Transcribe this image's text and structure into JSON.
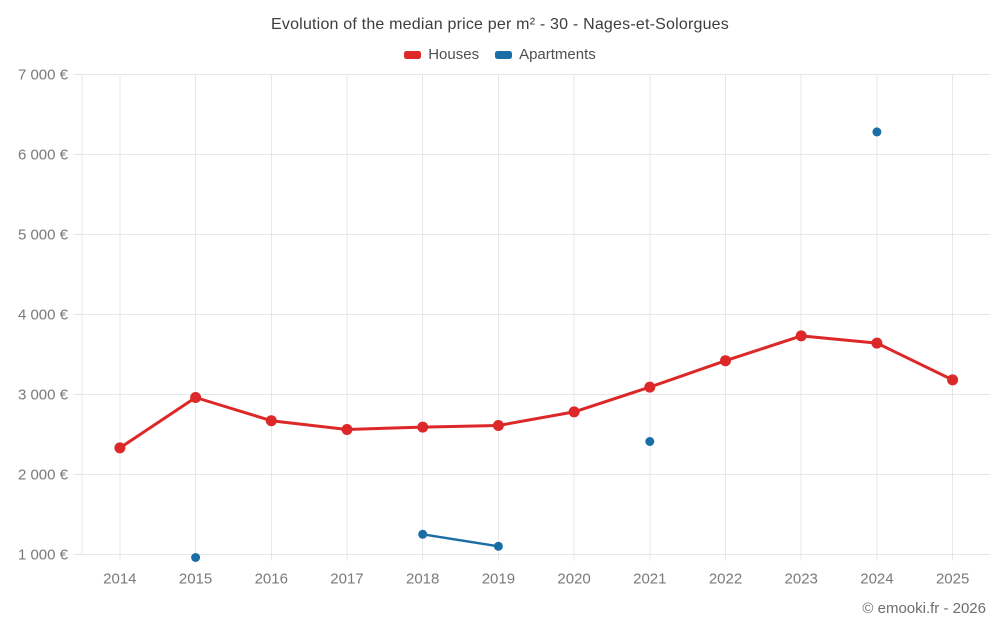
{
  "title": "Evolution of the median price per m² - 30 - Nages-et-Solorgues",
  "legend": {
    "items": [
      {
        "label": "Houses",
        "color": "#dc2828"
      },
      {
        "label": "Apartments",
        "color": "#1a6ea5"
      }
    ]
  },
  "footer": "© emooki.fr - 2026",
  "colors": {
    "houses": "#dc2828",
    "apartments": "#1a6ea5",
    "grid": "#e7e7e7",
    "axis_text": "#7a7a7a"
  },
  "chart_data": {
    "type": "line",
    "title": "Evolution of the median price per m² - 30 - Nages-et-Solorgues",
    "x": [
      2014,
      2015,
      2016,
      2017,
      2018,
      2019,
      2020,
      2021,
      2022,
      2023,
      2024,
      2025
    ],
    "series": [
      {
        "name": "Houses",
        "color": "#dc2828",
        "values": [
          2330,
          2960,
          2670,
          2560,
          2590,
          2610,
          2780,
          3090,
          3420,
          3730,
          3640,
          3180
        ]
      },
      {
        "name": "Apartments",
        "color": "#1a6ea5",
        "values": [
          null,
          960,
          null,
          null,
          1250,
          1100,
          null,
          2410,
          null,
          null,
          6280,
          null
        ]
      }
    ],
    "xlabel": "",
    "ylabel": "",
    "ylim": [
      1000,
      7000
    ],
    "yticks": [
      1000,
      2000,
      3000,
      4000,
      5000,
      6000,
      7000
    ],
    "ytick_suffix": " €",
    "grid": true,
    "legend_position": "top"
  }
}
